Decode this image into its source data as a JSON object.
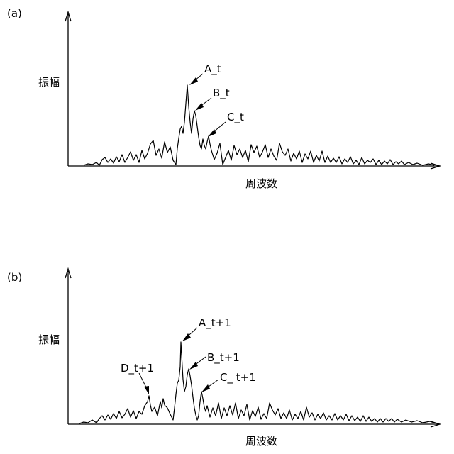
{
  "panels": [
    {
      "id": "a",
      "label": "(a)",
      "ylabel": "振幅",
      "xlabel": "周波数",
      "peaks": [
        {
          "name": "A_t"
        },
        {
          "name": "B_t"
        },
        {
          "name": "C_t"
        }
      ]
    },
    {
      "id": "b",
      "label": "(b)",
      "ylabel": "振幅",
      "xlabel": "周波数",
      "peaks": [
        {
          "name": "A_t+1"
        },
        {
          "name": "B_t+1"
        },
        {
          "name": "C_ t+1"
        },
        {
          "name": "D_t+1"
        }
      ]
    }
  ],
  "colors": {
    "line": "#000000",
    "background": "#ffffff"
  }
}
